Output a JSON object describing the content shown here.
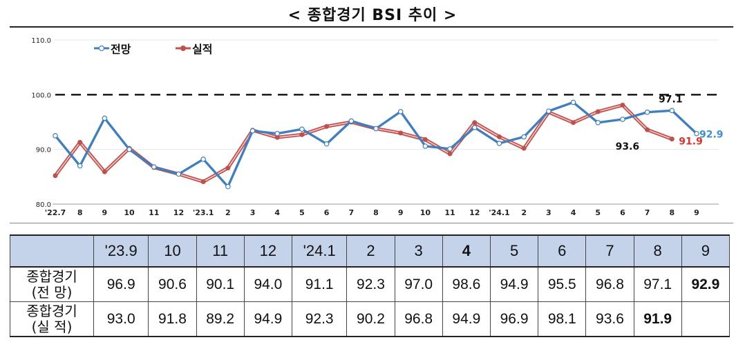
{
  "title": "< 종합경기 BSI 추이 >",
  "chart_data": {
    "type": "line",
    "x": [
      "'22.7",
      "8",
      "9",
      "10",
      "11",
      "12",
      "'23.1",
      "2",
      "3",
      "4",
      "5",
      "6",
      "7",
      "8",
      "9",
      "10",
      "11",
      "12",
      "'24.1",
      "2",
      "3",
      "4",
      "5",
      "6",
      "7",
      "8",
      "9"
    ],
    "yticks": [
      "110.0",
      "100.0",
      "90.0",
      "80.0"
    ],
    "ylim": [
      80,
      110
    ],
    "reference_line": 100,
    "legend_position": "top-left",
    "series": [
      {
        "name": "전망",
        "color": "#3f7fc1",
        "values": [
          92.5,
          87.0,
          95.7,
          90.0,
          86.8,
          85.5,
          88.2,
          83.2,
          93.4,
          92.9,
          93.7,
          91.0,
          95.2,
          93.8,
          96.9,
          90.6,
          90.1,
          94.0,
          91.1,
          92.3,
          97.0,
          98.6,
          94.9,
          95.5,
          96.8,
          97.1,
          92.9
        ]
      },
      {
        "name": "실적",
        "color": "#c0504d",
        "values": [
          85.2,
          91.3,
          85.9,
          90.2,
          86.7,
          85.5,
          84.1,
          86.6,
          93.5,
          92.2,
          92.7,
          94.2,
          95.0,
          93.8,
          93.0,
          91.8,
          89.2,
          94.9,
          92.3,
          90.2,
          96.8,
          94.9,
          96.9,
          98.1,
          93.6,
          91.9,
          null
        ]
      }
    ],
    "annotations": [
      {
        "text": "97.1",
        "series": "전망",
        "x_index": 25
      },
      {
        "text": "92.9",
        "series": "전망",
        "x_index": 26
      },
      {
        "text": "93.6",
        "series": "실적",
        "x_index": 24
      },
      {
        "text": "91.9",
        "series": "실적",
        "x_index": 25
      }
    ],
    "annotation_colors": {
      "97.1": "#111111",
      "92.9": "#3a8fd6",
      "93.6": "#111111",
      "91.9": "#e0302a"
    }
  },
  "table": {
    "header": [
      "'23.9",
      "10",
      "11",
      "12",
      "'24.1",
      "2",
      "3",
      "4",
      "5",
      "6",
      "7",
      "8",
      "9"
    ],
    "rows": [
      {
        "label_line1": "종합경기",
        "label_line2": "(전 망)",
        "values": [
          "96.9",
          "90.6",
          "90.1",
          "94.0",
          "91.1",
          "92.3",
          "97.0",
          "98.6",
          "94.9",
          "95.5",
          "96.8",
          "97.1",
          "92.9"
        ]
      },
      {
        "label_line1": "종합경기",
        "label_line2": "(실 적)",
        "values": [
          "93.0",
          "91.8",
          "89.2",
          "94.9",
          "92.3",
          "90.2",
          "96.8",
          "94.9",
          "96.9",
          "98.1",
          "93.6",
          "91.9",
          ""
        ]
      }
    ]
  }
}
